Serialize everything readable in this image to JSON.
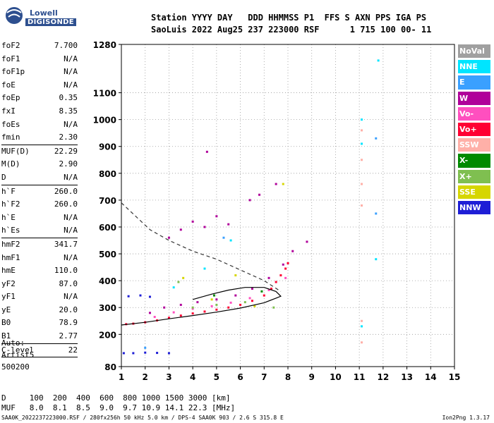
{
  "logo": {
    "line1": "Lowell",
    "line2": "DIGISONDE"
  },
  "header": {
    "line1": "Station YYYY DAY   DDD HHMMSS P1  FFS S AXN PPS IGA PS",
    "line2": "SaoLuis 2022 Aug25 237 223000 RSF      1 715 100 00- 11"
  },
  "params": [
    {
      "label": "foF2",
      "value": "7.700"
    },
    {
      "label": "foF1",
      "value": "N/A"
    },
    {
      "label": "foF1p",
      "value": "N/A"
    },
    {
      "label": "foE",
      "value": "N/A"
    },
    {
      "label": "foEp",
      "value": "0.35"
    },
    {
      "label": "fxI",
      "value": "8.35"
    },
    {
      "label": "foEs",
      "value": "N/A"
    },
    {
      "label": "fmin",
      "value": "2.30"
    },
    {
      "label": "MUF(D)",
      "value": "22.29"
    },
    {
      "label": "M(D)",
      "value": "2.90"
    },
    {
      "label": "D",
      "value": "N/A"
    },
    {
      "label": "h`F",
      "value": "260.0"
    },
    {
      "label": "h`F2",
      "value": "260.0"
    },
    {
      "label": "h`E",
      "value": "N/A"
    },
    {
      "label": "h`Es",
      "value": "N/A"
    },
    {
      "label": "hmF2",
      "value": "341.7"
    },
    {
      "label": "hmF1",
      "value": "N/A"
    },
    {
      "label": "hmE",
      "value": "110.0"
    },
    {
      "label": "yF2",
      "value": "87.0"
    },
    {
      "label": "yF1",
      "value": "N/A"
    },
    {
      "label": "yE",
      "value": "20.0"
    },
    {
      "label": "B0",
      "value": "78.9"
    },
    {
      "label": "B1",
      "value": "2.77"
    },
    {
      "label": "C-level",
      "value": "22"
    }
  ],
  "auto": {
    "line1": "Auto:",
    "line2": "Artist5",
    "line3": "500200"
  },
  "footer": {
    "d_row": "D     100  200  400  600  800 1000 1500 3000 [km]",
    "muf_row": "MUF   8.0  8.1  8.5  9.0  9.7 10.9 14.1 22.3 [MHz]",
    "info": "SAA0K_2022237223000.RSF / 280fx256h 50 kHz 5.0 km / DPS-4 SAA0K 903 / 2.6 S 315.8 E",
    "version": "Ion2Png 1.3.17"
  },
  "legend": [
    {
      "label": "NoVal",
      "bg": "#a0a0a0",
      "fg": "#ffffff"
    },
    {
      "label": "NNE",
      "bg": "#00e5ff",
      "fg": "#ffffff"
    },
    {
      "label": "E",
      "bg": "#3aa0ff",
      "fg": "#ffffff"
    },
    {
      "label": "W",
      "bg": "#b0009a",
      "fg": "#ffffff"
    },
    {
      "label": "Vo-",
      "bg": "#ff4fbf",
      "fg": "#ffffff"
    },
    {
      "label": "Vo+",
      "bg": "#ff0033",
      "fg": "#ffffff"
    },
    {
      "label": "SSW",
      "bg": "#ffb0a8",
      "fg": "#ffffff"
    },
    {
      "label": "X-",
      "bg": "#008a00",
      "fg": "#ffffff"
    },
    {
      "label": "X+",
      "bg": "#7fbf50",
      "fg": "#ffffff"
    },
    {
      "label": "SSE",
      "bg": "#d6d600",
      "fg": "#ffffff"
    },
    {
      "label": "NNW",
      "bg": "#1e1ed6",
      "fg": "#ffffff"
    }
  ],
  "chart_data": {
    "type": "scatter",
    "xlim": [
      1,
      15
    ],
    "ylim": [
      80,
      1280
    ],
    "x_ticks": [
      1,
      2,
      3,
      4,
      5,
      6,
      7,
      8,
      9,
      10,
      11,
      12,
      13,
      14,
      15
    ],
    "y_ticks": [
      80,
      200,
      300,
      400,
      500,
      600,
      700,
      800,
      900,
      1000,
      1100,
      1280
    ],
    "grid": "dotted",
    "series": [
      {
        "name": "Vo+",
        "color": "#ff0033",
        "points": [
          [
            1.2,
            238
          ],
          [
            1.5,
            240
          ],
          [
            2.0,
            245
          ],
          [
            2.5,
            252
          ],
          [
            3.0,
            262
          ],
          [
            3.5,
            270
          ],
          [
            4.0,
            278
          ],
          [
            4.5,
            285
          ],
          [
            5.0,
            292
          ],
          [
            5.5,
            300
          ],
          [
            6.0,
            310
          ],
          [
            6.5,
            325
          ],
          [
            7.0,
            345
          ],
          [
            7.3,
            370
          ],
          [
            7.5,
            395
          ],
          [
            7.7,
            420
          ],
          [
            7.9,
            445
          ],
          [
            8.0,
            465
          ]
        ]
      },
      {
        "name": "W",
        "color": "#b0009a",
        "points": [
          [
            2.2,
            280
          ],
          [
            2.8,
            300
          ],
          [
            3.5,
            310
          ],
          [
            4.2,
            320
          ],
          [
            5.0,
            330
          ],
          [
            5.8,
            345
          ],
          [
            6.5,
            370
          ],
          [
            7.2,
            410
          ],
          [
            7.8,
            460
          ],
          [
            8.2,
            510
          ],
          [
            8.8,
            545
          ],
          [
            3.0,
            560
          ],
          [
            3.5,
            590
          ],
          [
            4.0,
            620
          ],
          [
            4.5,
            600
          ],
          [
            5.0,
            640
          ],
          [
            5.5,
            610
          ],
          [
            6.4,
            700
          ],
          [
            6.8,
            720
          ],
          [
            7.5,
            760
          ],
          [
            4.6,
            880
          ]
        ]
      },
      {
        "name": "Vo-",
        "color": "#ff4fbf",
        "points": [
          [
            2.4,
            265
          ],
          [
            3.2,
            282
          ],
          [
            4.0,
            296
          ],
          [
            4.8,
            305
          ],
          [
            5.6,
            318
          ],
          [
            6.4,
            335
          ],
          [
            7.2,
            365
          ],
          [
            7.9,
            410
          ]
        ]
      },
      {
        "name": "NNW",
        "color": "#1e1ed6",
        "points": [
          [
            1.1,
            130
          ],
          [
            1.5,
            130
          ],
          [
            2.0,
            132
          ],
          [
            2.5,
            131
          ],
          [
            3.0,
            130
          ],
          [
            1.3,
            342
          ],
          [
            1.8,
            345
          ],
          [
            2.2,
            340
          ]
        ]
      },
      {
        "name": "NNE",
        "color": "#00e5ff",
        "points": [
          [
            11.1,
            230
          ],
          [
            11.1,
            910
          ],
          [
            11.1,
            1000
          ],
          [
            11.7,
            480
          ],
          [
            11.8,
            1220
          ],
          [
            5.6,
            550
          ],
          [
            3.2,
            375
          ],
          [
            4.5,
            445
          ]
        ]
      },
      {
        "name": "X+",
        "color": "#7fbf50",
        "points": [
          [
            4.0,
            300
          ],
          [
            5.0,
            310
          ],
          [
            6.2,
            320
          ],
          [
            7.4,
            300
          ],
          [
            3.4,
            395
          ]
        ]
      },
      {
        "name": "SSE",
        "color": "#d6d600",
        "points": [
          [
            3.6,
            410
          ],
          [
            5.8,
            420
          ],
          [
            7.8,
            760
          ],
          [
            4.8,
            330
          ],
          [
            6.6,
            305
          ]
        ]
      },
      {
        "name": "SSW",
        "color": "#ffb0a8",
        "points": [
          [
            11.1,
            680
          ],
          [
            11.1,
            760
          ],
          [
            11.1,
            850
          ],
          [
            11.1,
            960
          ],
          [
            11.1,
            250
          ],
          [
            11.1,
            170
          ]
        ]
      },
      {
        "name": "E",
        "color": "#3aa0ff",
        "points": [
          [
            2.0,
            150
          ],
          [
            11.7,
            930
          ],
          [
            11.7,
            650
          ],
          [
            5.3,
            560
          ]
        ]
      },
      {
        "name": "X-",
        "color": "#008a00",
        "points": [
          [
            4.9,
            345
          ],
          [
            6.9,
            360
          ]
        ]
      }
    ],
    "profile_solid": [
      [
        1.0,
        235
      ],
      [
        2.0,
        245
      ],
      [
        3.0,
        258
      ],
      [
        4.0,
        270
      ],
      [
        5.0,
        283
      ],
      [
        6.0,
        298
      ],
      [
        7.0,
        318
      ],
      [
        7.5,
        335
      ],
      [
        7.7,
        342
      ],
      [
        7.5,
        360
      ],
      [
        7.0,
        375
      ],
      [
        6.2,
        375
      ],
      [
        5.5,
        365
      ],
      [
        4.8,
        350
      ],
      [
        4.0,
        330
      ]
    ],
    "profile_dashed": [
      [
        1.0,
        690
      ],
      [
        1.6,
        640
      ],
      [
        2.2,
        590
      ],
      [
        3.0,
        550
      ],
      [
        4.0,
        510
      ],
      [
        5.0,
        480
      ],
      [
        6.0,
        440
      ],
      [
        7.0,
        400
      ],
      [
        7.7,
        360
      ]
    ]
  }
}
